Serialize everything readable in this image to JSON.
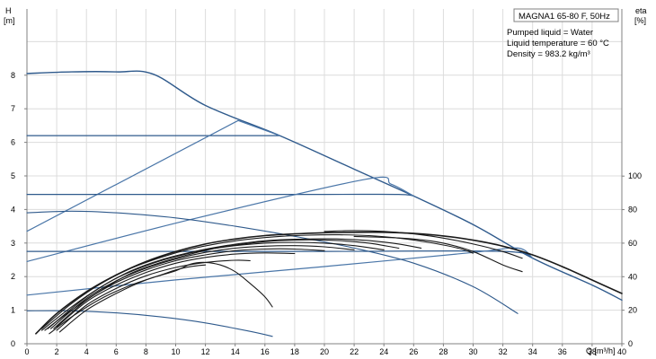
{
  "chart_data": {
    "type": "line",
    "title": "MAGNA1 65-80 F, 50Hz",
    "info_lines": [
      "Pumped liquid = Water",
      "Liquid temperature = 60 °C",
      "Density = 983.2 kg/m³"
    ],
    "x_axis": {
      "label": "Q [m³/h]",
      "range": [
        0,
        40
      ],
      "ticks": [
        0,
        2,
        4,
        6,
        8,
        10,
        12,
        14,
        16,
        18,
        20,
        22,
        24,
        26,
        28,
        30,
        32,
        34,
        36,
        38,
        40
      ],
      "tick_labels": [
        "0",
        "2",
        "4",
        "6",
        "8",
        "10",
        "12",
        "14",
        "16",
        "18",
        "20",
        "22",
        "24",
        "26",
        "28",
        "30",
        "32",
        "34",
        "36",
        "38",
        "40"
      ]
    },
    "y_axis_left": {
      "label_top": "H",
      "label_unit": "[m]",
      "range": [
        0,
        10
      ],
      "ticks": [
        0,
        1,
        2,
        3,
        4,
        5,
        6,
        7,
        8
      ],
      "tick_labels": [
        "0",
        "1",
        "2",
        "3",
        "4",
        "5",
        "6",
        "7",
        "8"
      ]
    },
    "y_axis_right": {
      "label_top": "eta",
      "label_unit": "[%]",
      "range": [
        0,
        200
      ],
      "ticks": [
        0,
        20,
        40,
        60,
        80,
        100
      ],
      "tick_labels": [
        "0",
        "20",
        "40",
        "60",
        "80",
        "100"
      ]
    },
    "grid": true,
    "colors": {
      "head_curves": "#2f5a8c",
      "control_lines": "#4a76a8",
      "efficiency_curves": "#1a1a1a"
    },
    "series": [
      {
        "axis": "left",
        "color": "#2f5a8c",
        "width": 1.4,
        "points": [
          [
            0,
            8.05
          ],
          [
            3,
            8.1
          ],
          [
            6,
            8.1
          ],
          [
            8.5,
            8.03
          ],
          [
            12,
            7.1
          ],
          [
            17,
            6.2
          ],
          [
            22,
            5.2
          ],
          [
            26,
            4.4
          ],
          [
            30,
            3.55
          ],
          [
            34,
            2.55
          ],
          [
            38,
            1.75
          ],
          [
            40,
            1.3
          ]
        ]
      },
      {
        "axis": "left",
        "color": "#2f5a8c",
        "width": 1.2,
        "points": [
          [
            0,
            6.2
          ],
          [
            8,
            6.2
          ],
          [
            16,
            6.2
          ],
          [
            17,
            6.2
          ]
        ]
      },
      {
        "axis": "left",
        "color": "#4a76a8",
        "width": 1.2,
        "points": [
          [
            0,
            3.35
          ],
          [
            14.2,
            6.65
          ],
          [
            17,
            6.2
          ]
        ]
      },
      {
        "axis": "left",
        "color": "#2f5a8c",
        "width": 1.2,
        "points": [
          [
            0,
            4.45
          ],
          [
            10,
            4.45
          ],
          [
            20,
            4.45
          ],
          [
            25,
            4.45
          ],
          [
            26,
            4.4
          ]
        ]
      },
      {
        "axis": "left",
        "color": "#4a76a8",
        "width": 1.2,
        "points": [
          [
            0,
            2.45
          ],
          [
            11,
            3.7
          ],
          [
            22.8,
            4.9
          ],
          [
            24.5,
            4.75
          ],
          [
            26,
            4.4
          ]
        ]
      },
      {
        "axis": "left",
        "color": "#2f5a8c",
        "width": 1.2,
        "points": [
          [
            0,
            2.75
          ],
          [
            10,
            2.75
          ],
          [
            20,
            2.75
          ],
          [
            32,
            2.75
          ],
          [
            34,
            2.55
          ]
        ]
      },
      {
        "axis": "left",
        "color": "#4a76a8",
        "width": 1.2,
        "points": [
          [
            0,
            1.45
          ],
          [
            10,
            1.9
          ],
          [
            20,
            2.3
          ],
          [
            30,
            2.72
          ],
          [
            33,
            2.85
          ],
          [
            34,
            2.55
          ]
        ]
      },
      {
        "axis": "left",
        "color": "#2f5a8c",
        "width": 1.1,
        "points": [
          [
            0,
            3.9
          ],
          [
            3,
            3.95
          ],
          [
            6,
            3.9
          ],
          [
            10,
            3.75
          ],
          [
            14,
            3.5
          ],
          [
            18,
            3.2
          ],
          [
            22,
            2.85
          ],
          [
            26,
            2.4
          ],
          [
            30,
            1.7
          ],
          [
            33,
            0.9
          ]
        ]
      },
      {
        "axis": "left",
        "color": "#2f5a8c",
        "width": 1.1,
        "points": [
          [
            0,
            0.98
          ],
          [
            3,
            0.98
          ],
          [
            6,
            0.92
          ],
          [
            9,
            0.8
          ],
          [
            12,
            0.62
          ],
          [
            15,
            0.37
          ],
          [
            16.5,
            0.22
          ]
        ]
      },
      {
        "axis": "right",
        "color": "#1a1a1a",
        "width": 1.6,
        "points": [
          [
            0.6,
            6
          ],
          [
            2,
            18
          ],
          [
            4,
            31
          ],
          [
            6,
            41
          ],
          [
            8,
            49
          ],
          [
            10,
            55
          ],
          [
            12,
            59.5
          ],
          [
            14,
            62.5
          ],
          [
            16,
            64.5
          ],
          [
            18,
            65.5
          ],
          [
            20,
            66.2
          ],
          [
            22,
            66.5
          ],
          [
            24,
            66.5
          ],
          [
            26,
            65.8
          ],
          [
            28,
            64.3
          ],
          [
            30,
            61.8
          ],
          [
            32,
            58.2
          ],
          [
            34,
            53
          ],
          [
            36,
            46
          ],
          [
            38,
            38
          ],
          [
            40,
            30
          ]
        ]
      },
      {
        "axis": "right",
        "color": "#1a1a1a",
        "width": 1.1,
        "points": [
          [
            1,
            9
          ],
          [
            3,
            24
          ],
          [
            5,
            36
          ],
          [
            7,
            45
          ],
          [
            9,
            51.5
          ],
          [
            11,
            56.5
          ],
          [
            13,
            60
          ],
          [
            15,
            62.5
          ],
          [
            17,
            64
          ],
          [
            19,
            64.8
          ],
          [
            21,
            65
          ],
          [
            23,
            64.5
          ],
          [
            25,
            63
          ],
          [
            27,
            60.5
          ],
          [
            29,
            57
          ],
          [
            30,
            54
          ]
        ]
      },
      {
        "axis": "right",
        "color": "#1a1a1a",
        "width": 1.1,
        "points": [
          [
            1,
            8
          ],
          [
            3,
            22
          ],
          [
            5,
            34
          ],
          [
            7,
            43.5
          ],
          [
            9,
            50
          ],
          [
            11,
            54.5
          ],
          [
            13,
            58
          ],
          [
            15,
            60.5
          ],
          [
            17,
            62
          ],
          [
            19,
            62.5
          ],
          [
            21,
            62.5
          ],
          [
            23,
            61.5
          ],
          [
            25,
            59.5
          ],
          [
            26.5,
            57
          ]
        ]
      },
      {
        "axis": "right",
        "color": "#1a1a1a",
        "width": 1.1,
        "points": [
          [
            1.2,
            8
          ],
          [
            3,
            20
          ],
          [
            5,
            32
          ],
          [
            7,
            42
          ],
          [
            9,
            48.5
          ],
          [
            11,
            53.5
          ],
          [
            13,
            57.5
          ],
          [
            15,
            60
          ],
          [
            17,
            61.5
          ],
          [
            19,
            62
          ],
          [
            21,
            61.5
          ],
          [
            23,
            60
          ],
          [
            25,
            57
          ]
        ]
      },
      {
        "axis": "right",
        "color": "#1a1a1a",
        "width": 1.1,
        "points": [
          [
            1.4,
            9
          ],
          [
            4,
            28
          ],
          [
            6,
            39
          ],
          [
            8,
            46.5
          ],
          [
            10,
            52
          ],
          [
            12,
            56
          ],
          [
            14,
            58.5
          ],
          [
            16,
            60
          ],
          [
            18,
            60.5
          ],
          [
            20,
            60
          ],
          [
            22,
            58.5
          ],
          [
            24,
            56
          ]
        ]
      },
      {
        "axis": "right",
        "color": "#1a1a1a",
        "width": 1.1,
        "points": [
          [
            1.6,
            9
          ],
          [
            4,
            27
          ],
          [
            6,
            37.5
          ],
          [
            8,
            45
          ],
          [
            10,
            50.5
          ],
          [
            12,
            54.5
          ],
          [
            14,
            57
          ],
          [
            16,
            58.2
          ],
          [
            18,
            58.5
          ],
          [
            20,
            57.8
          ],
          [
            22,
            56
          ]
        ]
      },
      {
        "axis": "right",
        "color": "#1a1a1a",
        "width": 1.1,
        "points": [
          [
            1.8,
            9
          ],
          [
            4,
            26
          ],
          [
            6,
            36.5
          ],
          [
            8,
            44
          ],
          [
            10,
            49.5
          ],
          [
            12,
            53
          ],
          [
            14,
            55.5
          ],
          [
            16,
            56.5
          ],
          [
            18,
            56.5
          ],
          [
            20,
            55.5
          ]
        ]
      },
      {
        "axis": "right",
        "color": "#1a1a1a",
        "width": 1.1,
        "points": [
          [
            2,
            10
          ],
          [
            4,
            25
          ],
          [
            6,
            35
          ],
          [
            8,
            42.5
          ],
          [
            10,
            48
          ],
          [
            12,
            51.5
          ],
          [
            14,
            53.5
          ],
          [
            16,
            54.2
          ],
          [
            18,
            53.8
          ]
        ]
      },
      {
        "axis": "right",
        "color": "#1a1a1a",
        "width": 1.1,
        "points": [
          [
            2,
            8
          ],
          [
            4,
            23
          ],
          [
            6,
            33
          ],
          [
            8,
            40.5
          ],
          [
            10,
            45.5
          ],
          [
            12,
            48.5
          ],
          [
            14,
            49.8
          ],
          [
            15,
            49.5
          ]
        ]
      },
      {
        "axis": "right",
        "color": "#1a1a1a",
        "width": 1.1,
        "points": [
          [
            2.2,
            7
          ],
          [
            4,
            20
          ],
          [
            6,
            30
          ],
          [
            8,
            38
          ],
          [
            10,
            43.5
          ],
          [
            11,
            47.5
          ],
          [
            12,
            48.5
          ],
          [
            13,
            47
          ],
          [
            14,
            43
          ],
          [
            15,
            36
          ],
          [
            16,
            28
          ],
          [
            16.5,
            22
          ]
        ]
      },
      {
        "axis": "right",
        "color": "#1a1a1a",
        "width": 1.1,
        "points": [
          [
            1.5,
            6
          ],
          [
            3,
            16
          ],
          [
            5,
            27
          ],
          [
            7,
            35
          ],
          [
            9,
            41
          ],
          [
            10,
            44
          ],
          [
            11,
            46
          ],
          [
            12,
            47
          ]
        ]
      },
      {
        "axis": "right",
        "color": "#1a1a1a",
        "width": 1.1,
        "points": [
          [
            20,
            67
          ],
          [
            22,
            67.5
          ],
          [
            24,
            67
          ],
          [
            26,
            65.5
          ],
          [
            28,
            63
          ],
          [
            30,
            59.5
          ],
          [
            32,
            55
          ],
          [
            33.3,
            51
          ]
        ]
      },
      {
        "axis": "right",
        "color": "#1a1a1a",
        "width": 1.1,
        "points": [
          [
            22,
            64
          ],
          [
            24,
            63.5
          ],
          [
            26,
            62.5
          ],
          [
            28,
            60
          ],
          [
            30,
            55
          ],
          [
            32,
            47
          ],
          [
            33.3,
            43
          ]
        ]
      }
    ]
  }
}
